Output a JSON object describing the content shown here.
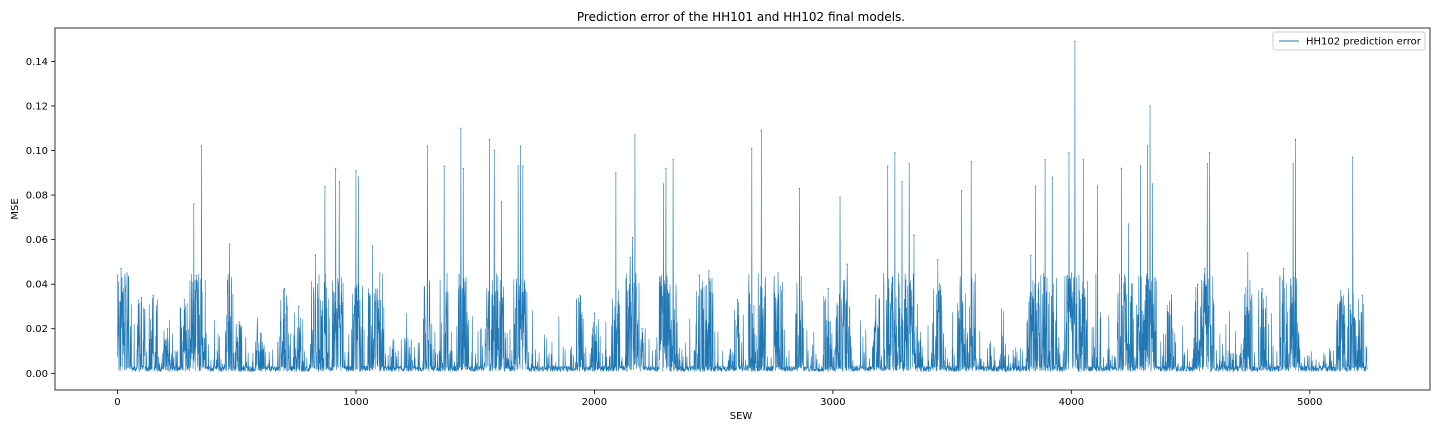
{
  "chart_data": {
    "type": "line",
    "title": "Prediction error of the HH101 and HH102 final models.",
    "xlabel": "SEW",
    "ylabel": "MSE",
    "xlim": [
      -262,
      5504
    ],
    "ylim": [
      -0.0075,
      0.155
    ],
    "xticks": [
      0,
      1000,
      2000,
      3000,
      4000,
      5000
    ],
    "xtick_labels": [
      "0",
      "1000",
      "2000",
      "3000",
      "4000",
      "5000"
    ],
    "yticks": [
      0.0,
      0.02,
      0.04,
      0.06,
      0.08,
      0.1,
      0.12,
      0.14
    ],
    "ytick_labels": [
      "0.00",
      "0.02",
      "0.04",
      "0.06",
      "0.08",
      "0.10",
      "0.12",
      "0.14"
    ],
    "grid": false,
    "legend_position": "top-right",
    "color": "#1f77b4",
    "n_points": 5242,
    "series": [
      {
        "name": "HH102 prediction error",
        "color": "#1f77b4",
        "peaks": [
          [
            0,
            0.044
          ],
          [
            15,
            0.047
          ],
          [
            40,
            0.045
          ],
          [
            100,
            0.034
          ],
          [
            150,
            0.035
          ],
          [
            210,
            0.02
          ],
          [
            280,
            0.033
          ],
          [
            320,
            0.076
          ],
          [
            330,
            0.044
          ],
          [
            352,
            0.102
          ],
          [
            470,
            0.058
          ],
          [
            510,
            0.023
          ],
          [
            600,
            0.018
          ],
          [
            700,
            0.038
          ],
          [
            760,
            0.03
          ],
          [
            830,
            0.053
          ],
          [
            870,
            0.084
          ],
          [
            915,
            0.092
          ],
          [
            930,
            0.086
          ],
          [
            1000,
            0.091
          ],
          [
            1010,
            0.088
          ],
          [
            1070,
            0.057
          ],
          [
            1100,
            0.045
          ],
          [
            1300,
            0.102
          ],
          [
            1370,
            0.093
          ],
          [
            1440,
            0.11
          ],
          [
            1450,
            0.092
          ],
          [
            1560,
            0.105
          ],
          [
            1580,
            0.1
          ],
          [
            1610,
            0.077
          ],
          [
            1680,
            0.093
          ],
          [
            1690,
            0.102
          ],
          [
            1700,
            0.093
          ],
          [
            1940,
            0.035
          ],
          [
            2000,
            0.027
          ],
          [
            2090,
            0.09
          ],
          [
            2150,
            0.052
          ],
          [
            2160,
            0.061
          ],
          [
            2170,
            0.107
          ],
          [
            2200,
            0.02
          ],
          [
            2290,
            0.085
          ],
          [
            2300,
            0.092
          ],
          [
            2330,
            0.096
          ],
          [
            2440,
            0.044
          ],
          [
            2480,
            0.046
          ],
          [
            2600,
            0.033
          ],
          [
            2660,
            0.101
          ],
          [
            2700,
            0.109
          ],
          [
            2770,
            0.045
          ],
          [
            2860,
            0.083
          ],
          [
            2980,
            0.038
          ],
          [
            3030,
            0.079
          ],
          [
            3060,
            0.049
          ],
          [
            3180,
            0.035
          ],
          [
            3230,
            0.093
          ],
          [
            3260,
            0.099
          ],
          [
            3290,
            0.086
          ],
          [
            3320,
            0.094
          ],
          [
            3340,
            0.062
          ],
          [
            3440,
            0.051
          ],
          [
            3540,
            0.082
          ],
          [
            3580,
            0.095
          ],
          [
            3830,
            0.053
          ],
          [
            3850,
            0.084
          ],
          [
            3890,
            0.096
          ],
          [
            3920,
            0.088
          ],
          [
            3990,
            0.099
          ],
          [
            4000,
            0.045
          ],
          [
            4015,
            0.149
          ],
          [
            4050,
            0.096
          ],
          [
            4110,
            0.084
          ],
          [
            4210,
            0.092
          ],
          [
            4240,
            0.067
          ],
          [
            4290,
            0.093
          ],
          [
            4320,
            0.102
          ],
          [
            4330,
            0.12
          ],
          [
            4340,
            0.085
          ],
          [
            4420,
            0.035
          ],
          [
            4530,
            0.04
          ],
          [
            4560,
            0.047
          ],
          [
            4570,
            0.094
          ],
          [
            4580,
            0.099
          ],
          [
            4740,
            0.054
          ],
          [
            4800,
            0.038
          ],
          [
            4890,
            0.047
          ],
          [
            4930,
            0.094
          ],
          [
            4940,
            0.105
          ],
          [
            5130,
            0.037
          ],
          [
            5180,
            0.097
          ],
          [
            5220,
            0.035
          ]
        ]
      }
    ]
  }
}
